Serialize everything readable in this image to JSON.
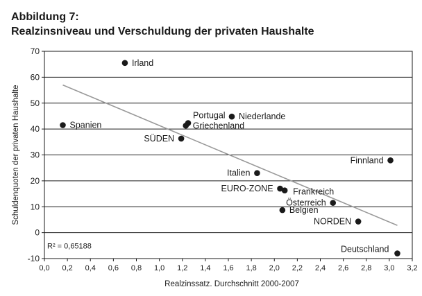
{
  "heading": {
    "figure_label": "Abbildung 7:",
    "title": "Realzinsniveau und Verschuldung der privaten Haushalte"
  },
  "chart_data": {
    "type": "scatter",
    "title": "Realzinsniveau und Verschuldung der privaten Haushalte",
    "xlabel": "Realzinssatz. Durchschnitt 2000-2007",
    "ylabel": "Schuldenquoten der privaten Haushalte",
    "xlim": [
      0.0,
      3.2
    ],
    "ylim": [
      -10,
      70
    ],
    "xticks": [
      0.0,
      0.2,
      0.4,
      0.6,
      0.8,
      1.0,
      1.2,
      1.4,
      1.6,
      1.8,
      2.0,
      2.2,
      2.4,
      2.6,
      2.8,
      3.0,
      3.2
    ],
    "xtick_labels": [
      "0,0",
      "0,2",
      "0,4",
      "0,6",
      "0,8",
      "1,0",
      "1,2",
      "1,4",
      "1,6",
      "1,8",
      "2,0",
      "2,2",
      "2,4",
      "2,6",
      "2,8",
      "3,0",
      "3,2"
    ],
    "yticks": [
      -10,
      0,
      10,
      20,
      30,
      40,
      50,
      60,
      70
    ],
    "ytick_labels": [
      "-10",
      "0",
      "10",
      "20",
      "30",
      "40",
      "50",
      "60",
      "70"
    ],
    "grid": {
      "horizontal": true,
      "vertical": false
    },
    "marker_color": "#1a1a1a",
    "trendline_color": "#999999",
    "points": [
      {
        "label": "Irland",
        "x": 0.7,
        "y": 65.5,
        "label_side": "right"
      },
      {
        "label": "Spanien",
        "x": 0.16,
        "y": 41.5,
        "label_side": "right"
      },
      {
        "label": "Portugal",
        "x": 1.25,
        "y": 42.3,
        "label_side": "above-right"
      },
      {
        "label": "Griechenland",
        "x": 1.23,
        "y": 41.3,
        "label_side": "right"
      },
      {
        "label": "Niederlande",
        "x": 1.63,
        "y": 44.8,
        "label_side": "right"
      },
      {
        "label": "SÜDEN",
        "x": 1.19,
        "y": 36.3,
        "label_side": "left"
      },
      {
        "label": "Italien",
        "x": 1.85,
        "y": 23.0,
        "label_side": "left"
      },
      {
        "label": "EURO-ZONE",
        "x": 2.05,
        "y": 17.0,
        "label_side": "left"
      },
      {
        "label": "Frankreich",
        "x": 2.09,
        "y": 16.3,
        "label_side": "below-right"
      },
      {
        "label": "Österreich",
        "x": 2.51,
        "y": 11.5,
        "label_side": "left"
      },
      {
        "label": "Belgien",
        "x": 2.07,
        "y": 8.7,
        "label_side": "right"
      },
      {
        "label": "NORDEN",
        "x": 2.73,
        "y": 4.3,
        "label_side": "left"
      },
      {
        "label": "Finnland",
        "x": 3.01,
        "y": 27.9,
        "label_side": "left"
      },
      {
        "label": "Deutschland",
        "x": 3.07,
        "y": -8.0,
        "label_side": "above-left"
      }
    ],
    "trendline": {
      "x": [
        0.16,
        3.07
      ],
      "y": [
        57.0,
        2.8
      ]
    },
    "annotation": "R² = 0,65188"
  }
}
